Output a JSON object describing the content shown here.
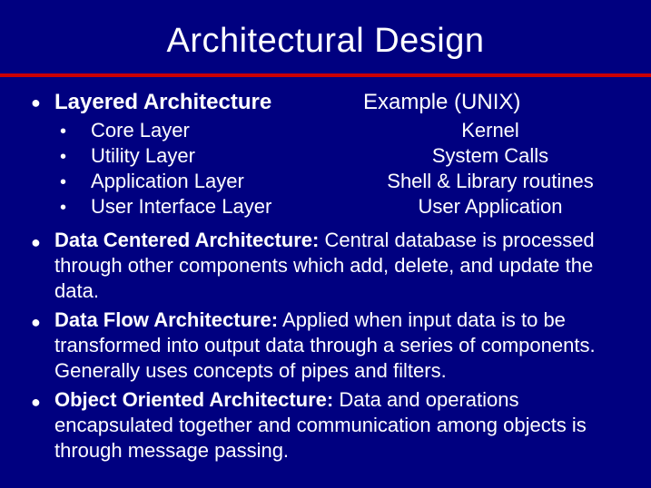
{
  "title": "Architectural Design",
  "colors": {
    "background": "#000080",
    "text": "#ffffff",
    "divider": "#cc0000"
  },
  "layered": {
    "heading": "Layered Architecture",
    "example_heading": "Example (UNIX)",
    "rows": [
      {
        "layer": "Core Layer",
        "example": "Kernel"
      },
      {
        "layer": "Utility Layer",
        "example": "System Calls"
      },
      {
        "layer": "Application Layer",
        "example": "Shell & Library routines"
      },
      {
        "layer": "User Interface Layer",
        "example": "User Application"
      }
    ]
  },
  "paragraphs": [
    {
      "bold": "Data Centered Architecture:",
      "rest": " Central database is processed through other components which add, delete, and update the data."
    },
    {
      "bold": "Data Flow Architecture:",
      "rest": " Applied when input data is to be transformed into output data through a series of components. Generally uses concepts of pipes and filters."
    },
    {
      "bold": "Object Oriented Architecture:",
      "rest": " Data and operations encapsulated together and communication among objects is through message passing."
    }
  ]
}
